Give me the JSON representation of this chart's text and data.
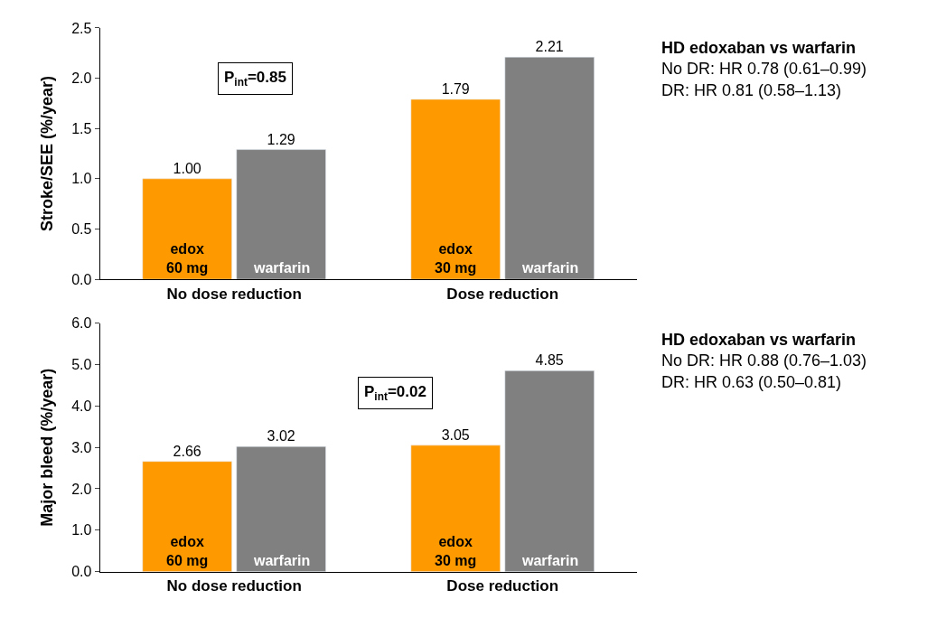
{
  "chart_data": [
    {
      "type": "bar",
      "ylabel": "Stroke/SEE (%/year)",
      "categories": [
        "No dose reduction",
        "Dose reduction"
      ],
      "series": [
        {
          "color": "#ff9900",
          "values": [
            1.0,
            1.79
          ],
          "value_labels": [
            "1.00",
            "1.79"
          ]
        },
        {
          "color": "#808080",
          "values": [
            1.29,
            2.21
          ],
          "value_labels": [
            "1.29",
            "2.21"
          ]
        }
      ],
      "ylim": [
        0,
        2.5
      ],
      "yticks": [
        {
          "value": 0,
          "label": "0.0"
        },
        {
          "value": 0.5,
          "label": "0.5"
        },
        {
          "value": 1,
          "label": "1.0"
        },
        {
          "value": 1.5,
          "label": "1.5"
        },
        {
          "value": 2,
          "label": "2.0"
        },
        {
          "value": 2.5,
          "label": "2.5"
        }
      ],
      "annotations": [
        "P$_{int}$=0.85",
        "HD edoxaban vs warfarin\nNo DR: HR 0.78 (0.61–0.99)\nDR: HR 0.81 (0.58–1.13)",
        {
          "text": "edox\n60 mg",
          "x": "No dose reduction",
          "y": 0
        },
        {
          "text": "warfarin",
          "x": "No dose reduction",
          "y": 0
        },
        {
          "text": "edox\n30 mg",
          "x": "Dose reduction",
          "y": 0
        },
        {
          "text": "warfarin",
          "x": "Dose reduction",
          "y": 0
        }
      ]
    },
    {
      "type": "bar",
      "ylabel": "Major bleed (%/year)",
      "categories": [
        "No dose reduction",
        "Dose reduction"
      ],
      "series": [
        {
          "color": "#ff9900",
          "values": [
            2.66,
            3.05
          ],
          "value_labels": [
            "2.66",
            "3.05"
          ]
        },
        {
          "color": "#808080",
          "values": [
            3.02,
            4.85
          ],
          "value_labels": [
            "3.02",
            "4.85"
          ]
        }
      ],
      "ylim": [
        0,
        6
      ],
      "yticks": [
        {
          "value": 0,
          "label": "0.0"
        },
        {
          "value": 1,
          "label": "1.0"
        },
        {
          "value": 2,
          "label": "2.0"
        },
        {
          "value": 3,
          "label": "3.0"
        },
        {
          "value": 4,
          "label": "4.0"
        },
        {
          "value": 5,
          "label": "5.0"
        },
        {
          "value": 6,
          "label": "6.0"
        }
      ],
      "annotations": [
        "P$_{int}$=0.02",
        "HD edoxaban vs warfarin\nNo DR: HR 0.88 (0.76–1.03)\nDR: HR 0.63 (0.50–0.81)",
        {
          "text": "edox\n60 mg",
          "x": "No dose reduction",
          "y": 0
        },
        {
          "text": "warfarin",
          "x": "No dose reduction",
          "y": 0
        },
        {
          "text": "edox\n30 mg",
          "x": "Dose reduction",
          "y": 0
        },
        {
          "text": "warfarin",
          "x": "Dose reduction",
          "y": 0
        }
      ]
    }
  ]
}
